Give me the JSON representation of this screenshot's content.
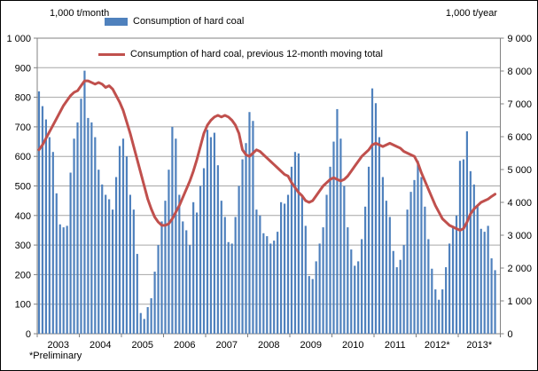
{
  "header": {
    "left_unit": "1,000 t/month",
    "right_unit": "1,000 t/year"
  },
  "legend": {
    "bar_label": "Consumption of hard coal",
    "line_label": "Consumption of hard coal, previous 12-month moving total"
  },
  "footnote": "*Preliminary",
  "colors": {
    "bar": "#4F81BD",
    "line": "#C0504D",
    "grid": "#A6A6A6",
    "axis": "#808080",
    "text": "#000000"
  },
  "chart_data": {
    "type": "bar",
    "title": "Consumption of hard coal",
    "x_start": "2003-01",
    "x_end": "2013-11",
    "year_labels": [
      "2003",
      "2004",
      "2005",
      "2006",
      "2007",
      "2008",
      "2009",
      "2010",
      "2011",
      "2012*",
      "2013*"
    ],
    "left_axis": {
      "label": "1,000 t/month",
      "min": 0,
      "max": 1000,
      "step": 100,
      "tick_labels": [
        "1 000",
        "900",
        "800",
        "700",
        "600",
        "500",
        "400",
        "300",
        "200",
        "100",
        "0"
      ]
    },
    "right_axis": {
      "label": "1,000 t/year",
      "min": 0,
      "max": 9000,
      "step": 1000,
      "tick_labels": [
        "9 000",
        "8 000",
        "7 000",
        "6 000",
        "5 000",
        "4 000",
        "3 000",
        "2 000",
        "1 000",
        "0"
      ]
    },
    "grid": "horizontal",
    "legend_position": "top-left-inside",
    "series": [
      {
        "name": "Consumption of hard coal",
        "type": "bar",
        "axis": "left",
        "color": "#4F81BD",
        "values": [
          820,
          770,
          725,
          665,
          615,
          475,
          370,
          360,
          365,
          545,
          660,
          715,
          795,
          890,
          730,
          715,
          665,
          555,
          505,
          470,
          455,
          420,
          530,
          635,
          660,
          600,
          470,
          420,
          270,
          70,
          50,
          90,
          120,
          210,
          300,
          380,
          450,
          555,
          700,
          660,
          470,
          380,
          350,
          300,
          445,
          410,
          500,
          560,
          690,
          665,
          680,
          570,
          450,
          395,
          310,
          305,
          395,
          500,
          590,
          645,
          750,
          720,
          420,
          400,
          340,
          330,
          305,
          315,
          345,
          445,
          440,
          470,
          565,
          615,
          610,
          470,
          365,
          195,
          185,
          245,
          305,
          360,
          470,
          565,
          650,
          760,
          660,
          500,
          360,
          285,
          230,
          245,
          320,
          430,
          565,
          830,
          780,
          665,
          530,
          450,
          395,
          280,
          225,
          250,
          300,
          420,
          480,
          520,
          585,
          530,
          430,
          320,
          220,
          150,
          115,
          150,
          225,
          305,
          365,
          400,
          585,
          590,
          685,
          550,
          505,
          435,
          355,
          345,
          365,
          255,
          215
        ]
      },
      {
        "name": "Consumption of hard coal, previous 12-month moving total",
        "type": "line",
        "axis": "right",
        "color": "#C0504D",
        "values": [
          5600,
          5750,
          5950,
          6150,
          6350,
          6550,
          6750,
          6950,
          7100,
          7250,
          7350,
          7400,
          7550,
          7700,
          7700,
          7650,
          7600,
          7650,
          7600,
          7500,
          7550,
          7450,
          7250,
          7050,
          6800,
          6450,
          6100,
          5700,
          5300,
          4900,
          4500,
          4100,
          3800,
          3550,
          3400,
          3300,
          3300,
          3350,
          3500,
          3700,
          3900,
          4150,
          4400,
          4650,
          4950,
          5300,
          5700,
          6100,
          6350,
          6500,
          6600,
          6650,
          6600,
          6650,
          6600,
          6500,
          6350,
          6100,
          5600,
          5450,
          5400,
          5500,
          5600,
          5550,
          5450,
          5350,
          5250,
          5150,
          5050,
          4950,
          4850,
          4800,
          4600,
          4450,
          4300,
          4200,
          4050,
          4000,
          4050,
          4200,
          4350,
          4500,
          4600,
          4700,
          4750,
          4700,
          4650,
          4700,
          4800,
          4950,
          5100,
          5250,
          5400,
          5500,
          5600,
          5750,
          5800,
          5750,
          5700,
          5750,
          5800,
          5750,
          5700,
          5650,
          5550,
          5500,
          5450,
          5400,
          5200,
          4900,
          4650,
          4400,
          4150,
          3900,
          3700,
          3500,
          3400,
          3300,
          3250,
          3200,
          3150,
          3200,
          3400,
          3650,
          3800,
          3900,
          4000,
          4050,
          4100,
          4180,
          4250
        ]
      }
    ]
  }
}
